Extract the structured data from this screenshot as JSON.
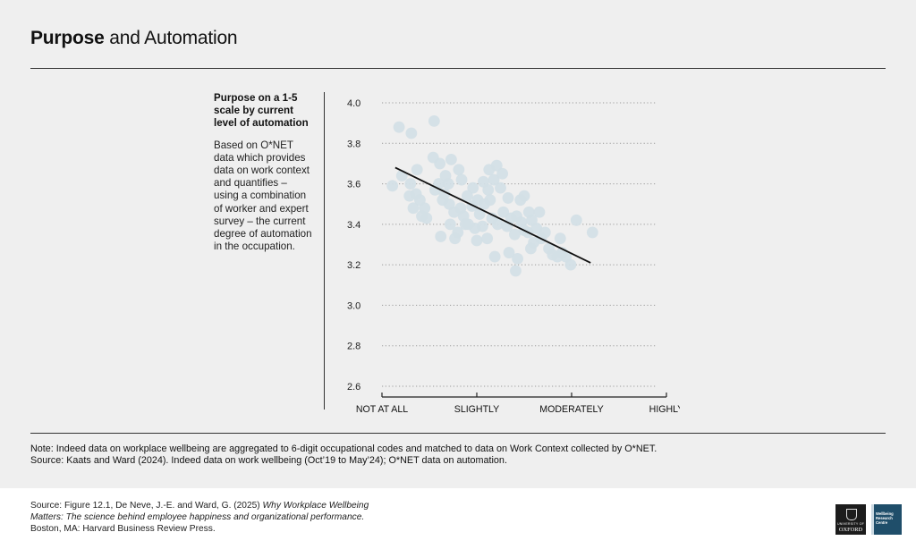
{
  "title": {
    "bold": "Purpose",
    "rest": "and Automation"
  },
  "side": {
    "heading": "Purpose on a 1-5 scale by current level of automation",
    "description": "Based on O*NET data which provides data on work context and quantifies – using a combination of worker and expert survey – the current degree of automation in the occupation."
  },
  "notes": {
    "note": "Note: Indeed data on workplace wellbeing are aggregated to 6-digit occupational codes and matched to data on Work Context collected by O*NET.",
    "source": "Source: Kaats and Ward (2024). Indeed data on work wellbeing (Oct’19 to May’24); O*NET data on automation."
  },
  "footer": {
    "credit_prefix": "Source: Figure 12.1, De Neve, J.-E. and Ward, G. (2025) ",
    "credit_title": "Why Workplace Wellbeing Matters: The science behind employee happiness and organizational performance.",
    "credit_suffix": " Boston, MA: Harvard Business Review Press.",
    "logo_oxford_small": "UNIVERSITY OF",
    "logo_oxford_big": "OXFORD",
    "logo_wrc": [
      "Wellbeing",
      "Research",
      "Centre"
    ]
  },
  "colors": {
    "points": "#d3dfe6",
    "line": "#111111",
    "grid": "#9a9a9a",
    "background": "#efefef"
  },
  "chart_data": {
    "type": "scatter",
    "xlabel": "",
    "ylabel": "",
    "categories": [
      "NOT AT ALL",
      "SLIGHTLY",
      "MODERATELY",
      "HIGHLY"
    ],
    "xlim": [
      1,
      4
    ],
    "ylim": [
      2.6,
      4.0
    ],
    "y_ticks": [
      "4.0",
      "3.8",
      "3.6",
      "3.4",
      "3.2",
      "3.0",
      "2.8",
      "2.6"
    ],
    "grid": "horizontal dotted",
    "points": [
      [
        1.18,
        3.88
      ],
      [
        1.31,
        3.85
      ],
      [
        1.55,
        3.91
      ],
      [
        1.11,
        3.59
      ],
      [
        1.21,
        3.64
      ],
      [
        1.37,
        3.67
      ],
      [
        1.3,
        3.6
      ],
      [
        1.36,
        3.55
      ],
      [
        1.4,
        3.52
      ],
      [
        1.45,
        3.48
      ],
      [
        1.42,
        3.44
      ],
      [
        1.54,
        3.73
      ],
      [
        1.61,
        3.7
      ],
      [
        1.67,
        3.64
      ],
      [
        1.6,
        3.6
      ],
      [
        1.56,
        3.57
      ],
      [
        1.66,
        3.55
      ],
      [
        1.71,
        3.5
      ],
      [
        1.76,
        3.46
      ],
      [
        1.72,
        3.4
      ],
      [
        1.62,
        3.34
      ],
      [
        1.77,
        3.33
      ],
      [
        1.8,
        3.36
      ],
      [
        1.86,
        3.44
      ],
      [
        1.91,
        3.4
      ],
      [
        1.98,
        3.38
      ],
      [
        2.03,
        3.45
      ],
      [
        2.08,
        3.5
      ],
      [
        2.12,
        3.57
      ],
      [
        2.18,
        3.62
      ],
      [
        2.13,
        3.67
      ],
      [
        2.21,
        3.69
      ],
      [
        2.27,
        3.65
      ],
      [
        2.25,
        3.58
      ],
      [
        1.96,
        3.58
      ],
      [
        1.9,
        3.54
      ],
      [
        1.81,
        3.67
      ],
      [
        1.73,
        3.72
      ],
      [
        1.7,
        3.6
      ],
      [
        1.83,
        3.48
      ],
      [
        1.95,
        3.49
      ],
      [
        2.01,
        3.52
      ],
      [
        1.88,
        3.4
      ],
      [
        2.06,
        3.39
      ],
      [
        2.11,
        3.33
      ],
      [
        2.0,
        3.32
      ],
      [
        2.16,
        3.43
      ],
      [
        2.22,
        3.4
      ],
      [
        2.33,
        3.53
      ],
      [
        2.46,
        3.52
      ],
      [
        2.5,
        3.54
      ],
      [
        2.42,
        3.44
      ],
      [
        2.47,
        3.41
      ],
      [
        2.55,
        3.46
      ],
      [
        2.4,
        3.35
      ],
      [
        2.5,
        3.37
      ],
      [
        2.54,
        3.36
      ],
      [
        2.58,
        3.42
      ],
      [
        2.63,
        3.38
      ],
      [
        2.68,
        3.33
      ],
      [
        2.72,
        3.36
      ],
      [
        2.57,
        3.28
      ],
      [
        2.76,
        3.28
      ],
      [
        2.8,
        3.25
      ],
      [
        2.85,
        3.24
      ],
      [
        2.9,
        3.26
      ],
      [
        2.94,
        3.24
      ],
      [
        2.99,
        3.2
      ],
      [
        3.05,
        3.42
      ],
      [
        3.22,
        3.36
      ],
      [
        2.34,
        3.26
      ],
      [
        2.43,
        3.23
      ],
      [
        2.41,
        3.17
      ],
      [
        2.19,
        3.24
      ],
      [
        1.29,
        3.54
      ],
      [
        1.33,
        3.48
      ],
      [
        1.47,
        3.43
      ],
      [
        1.64,
        3.52
      ],
      [
        1.84,
        3.62
      ],
      [
        2.66,
        3.46
      ],
      [
        2.32,
        3.39
      ],
      [
        2.28,
        3.46
      ],
      [
        2.14,
        3.52
      ],
      [
        2.36,
        3.43
      ],
      [
        2.6,
        3.31
      ],
      [
        2.88,
        3.33
      ],
      [
        2.07,
        3.61
      ]
    ],
    "trendline": {
      "x": [
        1.14,
        3.2
      ],
      "y": [
        3.68,
        3.21
      ]
    }
  }
}
